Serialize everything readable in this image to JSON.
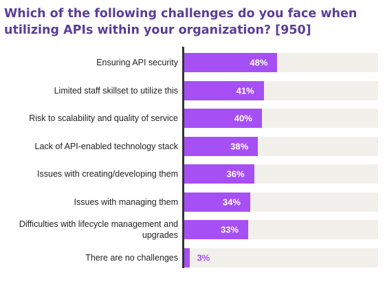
{
  "chart_data": {
    "type": "bar",
    "orientation": "horizontal",
    "title": "Which of the following challenges do you face when utilizing APIs within your organization? [950]",
    "categories": [
      "Ensuring API security",
      "Limited staff skillset to utilize this",
      "Risk to scalability and quality of service",
      "Lack of API-enabled technology stack",
      "Issues with creating/developing them",
      "Issues with managing them",
      "Difficulties with lifecycle management and upgrades",
      "There are no challenges"
    ],
    "values": [
      48,
      41,
      40,
      38,
      36,
      34,
      33,
      3
    ],
    "value_labels": [
      "48%",
      "41%",
      "40%",
      "38%",
      "36%",
      "34%",
      "33%",
      "3%"
    ],
    "xlim": [
      0,
      100
    ],
    "grid": false,
    "colors": {
      "bar": "#a64ff5",
      "track": "#f2f0eb",
      "title": "#5b3e96",
      "axis": "#333333"
    }
  }
}
